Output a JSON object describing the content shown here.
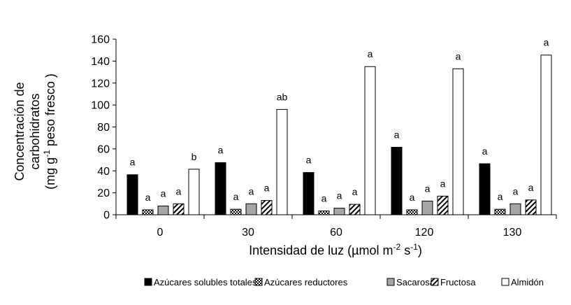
{
  "chart_data": {
    "type": "bar",
    "title": "",
    "xlabel": {
      "main": "Intensidad de luz (µmol m",
      "sup1": "-2",
      "mid": " s",
      "sup2": "-1",
      "end": ")"
    },
    "ylabel": {
      "line1": "Concentración de",
      "line2": "carbohidratos",
      "line3_pre": "(mg g",
      "line3_sup": "-1",
      "line3_post": " peso fresco )"
    },
    "ylim": [
      0,
      160
    ],
    "yticks": [
      "0",
      "20",
      "40",
      "60",
      "80",
      "100",
      "120",
      "140",
      "160"
    ],
    "ytick_values": [
      0,
      20,
      40,
      60,
      80,
      100,
      120,
      140,
      160
    ],
    "categories": [
      "0",
      "30",
      "60",
      "120",
      "130"
    ],
    "series": [
      {
        "name": "Azúcares solubles totales",
        "fill": "solid-black",
        "values": [
          36.5,
          47.5,
          38.5,
          61.5,
          46.5
        ],
        "labels": [
          "a",
          "a",
          "a",
          "a",
          "a"
        ]
      },
      {
        "name": "Azúcares reductores",
        "fill": "checker",
        "values": [
          4.5,
          5.0,
          3.5,
          4.5,
          5.0
        ],
        "labels": [
          "a",
          "a",
          "a",
          "a",
          "a"
        ]
      },
      {
        "name": "Sacarosa",
        "fill": "gray",
        "values": [
          8.0,
          10.0,
          6.0,
          12.5,
          10.0
        ],
        "labels": [
          "a",
          "a",
          "a",
          "a",
          "a"
        ]
      },
      {
        "name": "Fructosa",
        "fill": "diagonal-hatch",
        "values": [
          10.0,
          13.0,
          9.5,
          17.0,
          13.5
        ],
        "labels": [
          "a",
          "a",
          "a",
          "a",
          "a"
        ]
      },
      {
        "name": "Almidón",
        "fill": "white",
        "values": [
          41.5,
          96.0,
          135.0,
          133.0,
          145.5
        ],
        "labels": [
          "b",
          "ab",
          "a",
          "a",
          "a"
        ]
      }
    ],
    "legend_position": "bottom-right",
    "grid": false,
    "colors": {
      "black": "#000000",
      "gray": "#a6a6a6",
      "white": "#ffffff",
      "axis": "#000000"
    }
  }
}
